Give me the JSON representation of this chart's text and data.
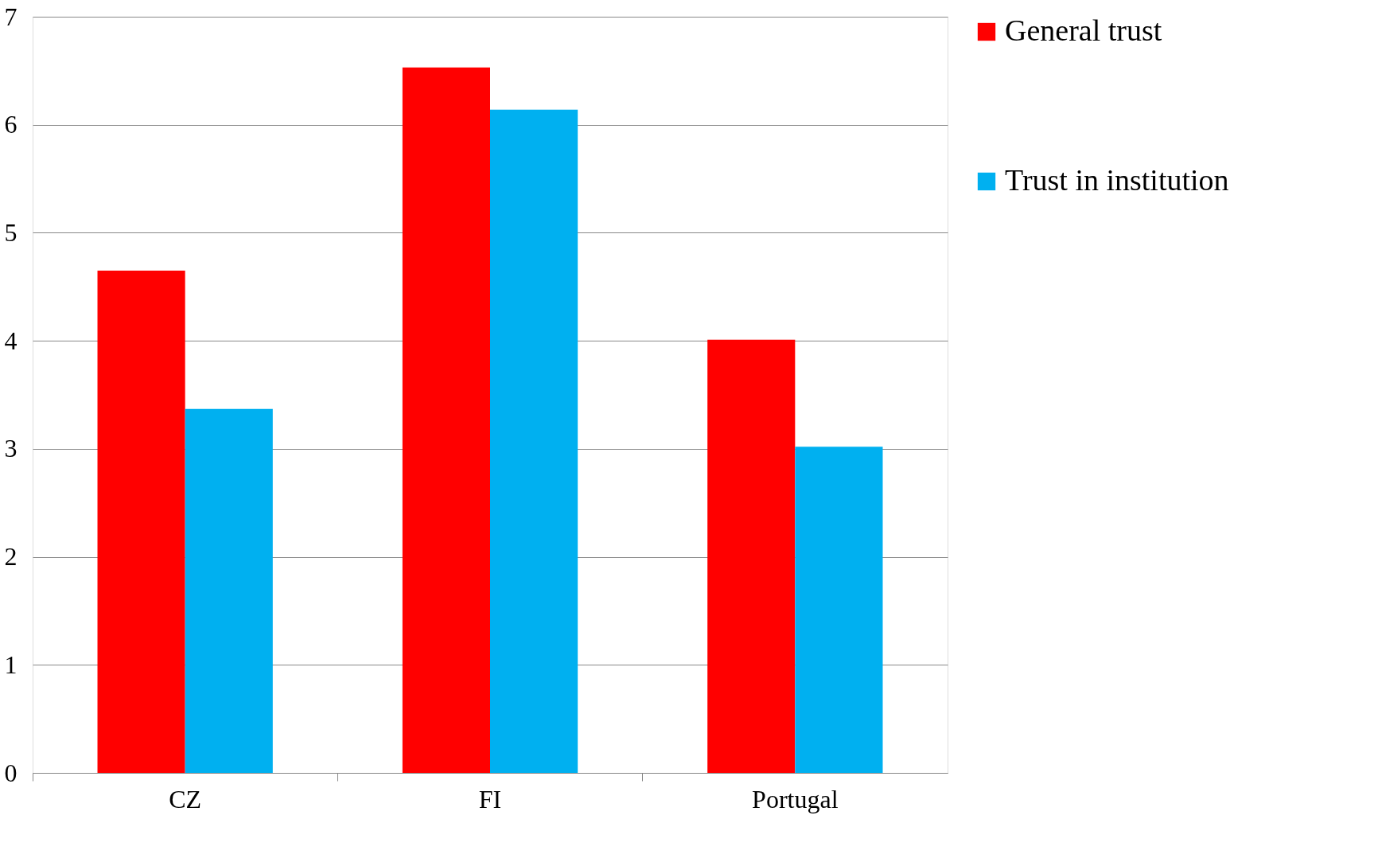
{
  "chart_data": {
    "type": "bar",
    "categories": [
      "CZ",
      "FI",
      "Portugal"
    ],
    "series": [
      {
        "name": "General trust",
        "color": "#ff0000",
        "values": [
          4.65,
          6.53,
          4.01
        ]
      },
      {
        "name": "Trust in institution",
        "color": "#00b0f0",
        "values": [
          3.37,
          6.14,
          3.02
        ]
      }
    ],
    "ylim": [
      0,
      7
    ],
    "yticks": [
      0,
      1,
      2,
      3,
      4,
      5,
      6,
      7
    ],
    "grid": "y",
    "legend": "right"
  }
}
